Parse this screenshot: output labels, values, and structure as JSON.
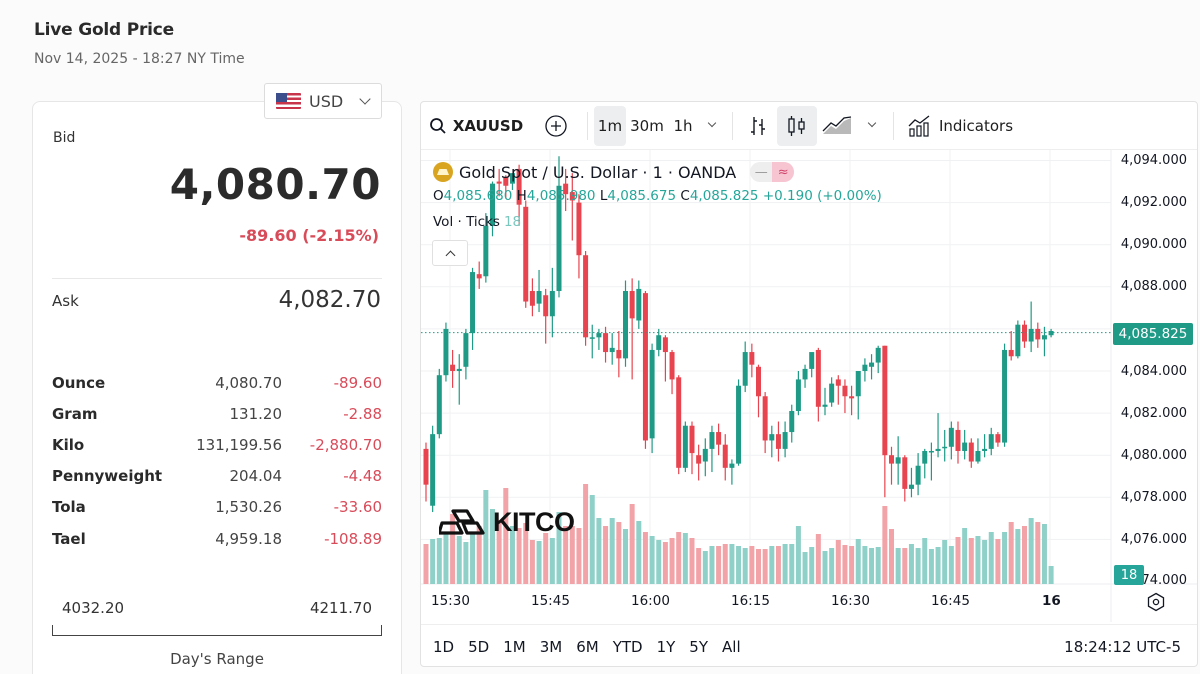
{
  "header": {
    "title": "Live Gold Price",
    "timestamp": "Nov 14, 2025 - 18:27 NY Time"
  },
  "currency_selector": {
    "flag": "us-flag-icon",
    "value": "USD"
  },
  "quote": {
    "bid_label": "Bid",
    "bid": "4,080.70",
    "change": "-89.60 (-2.15%)",
    "ask_label": "Ask",
    "ask": "4,082.70"
  },
  "units": [
    {
      "name": "Ounce",
      "price": "4,080.70",
      "change": "-89.60"
    },
    {
      "name": "Gram",
      "price": "131.20",
      "change": "-2.88"
    },
    {
      "name": "Kilo",
      "price": "131,199.56",
      "change": "-2,880.70"
    },
    {
      "name": "Pennyweight",
      "price": "204.04",
      "change": "-4.48"
    },
    {
      "name": "Tola",
      "price": "1,530.26",
      "change": "-33.60"
    },
    {
      "name": "Tael",
      "price": "4,959.18",
      "change": "-108.89"
    }
  ],
  "day_range": {
    "low": "4032.20",
    "high": "4211.70",
    "label": "Day's Range"
  },
  "chart": {
    "toolbar": {
      "symbol": "XAUUSD",
      "intervals": [
        "1m",
        "30m",
        "1h"
      ],
      "active_interval": "1m",
      "indicators_label": "Indicators"
    },
    "legend": {
      "title": "Gold Spot / U.S. Dollar · 1 · OANDA",
      "o_label": "O",
      "o": "4,085.680",
      "h_label": "H",
      "h": "4,085.980",
      "l_label": "L",
      "l": "4,085.675",
      "c_label": "C",
      "c": "4,085.825",
      "change": "+0.190 (+0.00%)",
      "vol_label": "Vol · Ticks",
      "vol_value": "18"
    },
    "price_axis": [
      "4,094.000",
      "4,092.000",
      "4,090.000",
      "4,088.000",
      "4,084.000",
      "4,082.000",
      "4,080.000",
      "4,078.000",
      "4,076.000",
      "74.000"
    ],
    "last_price_tag": "4,085.825",
    "volume_tag": "18",
    "time_axis": [
      "15:30",
      "15:45",
      "16:00",
      "16:15",
      "16:30",
      "16:45",
      "16"
    ],
    "ranges": [
      "1D",
      "5D",
      "1M",
      "3M",
      "6M",
      "YTD",
      "1Y",
      "5Y",
      "All"
    ],
    "clock": "18:24:12 UTC-5",
    "watermark": "KITCO",
    "colors": {
      "up": "#1e9a86",
      "down": "#e8444f",
      "vol_up": "#8fd0c8",
      "vol_down": "#f2a3a8",
      "last_price": "#1e9a86"
    }
  },
  "chart_data": {
    "type": "candlestick",
    "title": "Gold Spot / U.S. Dollar · 1 · OANDA",
    "interval": "1m",
    "ylim": [
      4074,
      4094.5
    ],
    "y_ticks": [
      4076,
      4078,
      4080,
      4082,
      4084,
      4086,
      4088,
      4090,
      4092,
      4094
    ],
    "x_ticks": [
      "15:30",
      "15:45",
      "16:00",
      "16:15",
      "16:30",
      "16:45",
      "16"
    ],
    "candles": [
      [
        4080.3,
        4078.6,
        4080.6,
        4077.8,
        40
      ],
      [
        4077.6,
        4081.0,
        4081.4,
        4077.3,
        45
      ],
      [
        4081.0,
        4083.8,
        4084.1,
        4080.8,
        46
      ],
      [
        4083.8,
        4086.0,
        4086.3,
        4083.5,
        52
      ],
      [
        4084.3,
        4084.0,
        4085.0,
        4083.2,
        70
      ],
      [
        4084.0,
        4084.1,
        4084.8,
        4082.4,
        48
      ],
      [
        4084.2,
        4085.8,
        4086.0,
        4083.6,
        42
      ],
      [
        4085.8,
        4088.7,
        4088.9,
        4085.0,
        52
      ],
      [
        4088.6,
        4088.4,
        4089.2,
        4087.9,
        58
      ],
      [
        4088.5,
        4090.9,
        4091.5,
        4088.2,
        94
      ],
      [
        4090.9,
        4092.9,
        4093.0,
        4090.4,
        75
      ],
      [
        4093.0,
        4092.9,
        4093.6,
        4092.3,
        64
      ],
      [
        4093.2,
        4092.8,
        4093.3,
        4092.2,
        96
      ],
      [
        4092.9,
        4093.4,
        4093.4,
        4092.6,
        58
      ],
      [
        4093.6,
        4091.9,
        4093.8,
        4090.9,
        56
      ],
      [
        4091.8,
        4087.3,
        4092.1,
        4087.0,
        61
      ],
      [
        4087.8,
        4087.1,
        4088.4,
        4086.6,
        44
      ],
      [
        4087.2,
        4087.8,
        4088.8,
        4086.8,
        43
      ],
      [
        4087.6,
        4086.6,
        4087.9,
        4085.3,
        51
      ],
      [
        4086.6,
        4087.8,
        4088.9,
        4085.6,
        46
      ],
      [
        4087.8,
        4092.8,
        4094.2,
        4087.5,
        72
      ],
      [
        4092.9,
        4092.4,
        4093.6,
        4091.6,
        58
      ],
      [
        4092.5,
        4092.1,
        4093.4,
        4090.2,
        58
      ],
      [
        4092.0,
        4089.5,
        4092.4,
        4088.4,
        56
      ],
      [
        4089.5,
        4085.6,
        4089.7,
        4085.2,
        100
      ],
      [
        4085.6,
        4085.6,
        4086.2,
        4084.6,
        89
      ],
      [
        4085.6,
        4085.8,
        4086.0,
        4085.0,
        66
      ],
      [
        4085.8,
        4084.9,
        4086.1,
        4084.4,
        58
      ],
      [
        4084.9,
        4085.1,
        4085.8,
        4084.3,
        66
      ],
      [
        4085.0,
        4084.6,
        4085.9,
        4083.7,
        62
      ],
      [
        4084.6,
        4087.8,
        4088.3,
        4084.2,
        55
      ],
      [
        4087.8,
        4086.5,
        4088.4,
        4083.6,
        80
      ],
      [
        4086.4,
        4087.9,
        4088.3,
        4086.0,
        63
      ],
      [
        4087.7,
        4080.7,
        4087.8,
        4080.3,
        52
      ],
      [
        4080.8,
        4085.0,
        4085.3,
        4080.1,
        48
      ],
      [
        4085.0,
        4085.7,
        4086.0,
        4084.7,
        44
      ],
      [
        4085.6,
        4084.9,
        4085.7,
        4083.5,
        42
      ],
      [
        4084.9,
        4083.6,
        4085.0,
        4082.9,
        46
      ],
      [
        4083.7,
        4079.4,
        4083.8,
        4079.1,
        52
      ],
      [
        4079.4,
        4081.4,
        4081.6,
        4079.2,
        51
      ],
      [
        4081.4,
        4080.1,
        4081.6,
        4079.1,
        46
      ],
      [
        4080.0,
        4079.6,
        4080.5,
        4078.8,
        36
      ],
      [
        4079.7,
        4080.3,
        4080.8,
        4079.0,
        33
      ],
      [
        4080.3,
        4081.1,
        4081.4,
        4079.2,
        38
      ],
      [
        4081.1,
        4080.5,
        4081.5,
        4080.0,
        38
      ],
      [
        4080.5,
        4079.4,
        4081.0,
        4078.8,
        40
      ],
      [
        4079.4,
        4079.6,
        4079.8,
        4078.6,
        40
      ],
      [
        4079.6,
        4083.3,
        4083.6,
        4079.5,
        38
      ],
      [
        4083.3,
        4084.9,
        4085.4,
        4083.0,
        36
      ],
      [
        4084.9,
        4084.3,
        4085.3,
        4083.7,
        38
      ],
      [
        4084.2,
        4082.8,
        4084.3,
        4081.8,
        35
      ],
      [
        4082.8,
        4080.7,
        4083.0,
        4080.1,
        35
      ],
      [
        4080.7,
        4081.0,
        4081.4,
        4079.9,
        38
      ],
      [
        4081.0,
        4080.3,
        4081.6,
        4079.7,
        38
      ],
      [
        4080.3,
        4081.1,
        4081.6,
        4079.9,
        40
      ],
      [
        4081.1,
        4082.1,
        4082.4,
        4080.6,
        40
      ],
      [
        4082.1,
        4083.6,
        4084.0,
        4081.9,
        58
      ],
      [
        4083.6,
        4084.1,
        4084.3,
        4083.2,
        32
      ],
      [
        4084.1,
        4084.9,
        4084.8,
        4083.7,
        37
      ],
      [
        4085.0,
        4082.3,
        4085.1,
        4081.6,
        50
      ],
      [
        4082.3,
        4082.4,
        4083.2,
        4081.9,
        33
      ],
      [
        4082.5,
        4083.4,
        4083.7,
        4082.3,
        36
      ],
      [
        4083.6,
        4083.3,
        4083.8,
        4082.4,
        44
      ],
      [
        4083.3,
        4082.8,
        4083.6,
        4082.0,
        39
      ],
      [
        4082.8,
        4082.7,
        4083.3,
        4081.9,
        38
      ],
      [
        4082.8,
        4084.0,
        4084.0,
        4081.7,
        45
      ],
      [
        4084.0,
        4084.3,
        4084.6,
        4083.5,
        38
      ],
      [
        4084.2,
        4084.4,
        4084.8,
        4083.6,
        36
      ],
      [
        4084.4,
        4085.1,
        4085.2,
        4083.9,
        37
      ],
      [
        4085.2,
        4080.0,
        4085.2,
        4078.0,
        78
      ],
      [
        4080.0,
        4079.6,
        4080.4,
        4078.6,
        55
      ],
      [
        4079.6,
        4079.9,
        4080.9,
        4078.6,
        36
      ],
      [
        4079.9,
        4078.4,
        4080.0,
        4077.8,
        36
      ],
      [
        4078.4,
        4078.6,
        4079.4,
        4078.0,
        40
      ],
      [
        4078.6,
        4079.5,
        4080.1,
        4078.1,
        36
      ],
      [
        4079.6,
        4080.2,
        4080.3,
        4078.9,
        46
      ],
      [
        4080.2,
        4080.2,
        4080.6,
        4078.8,
        35
      ],
      [
        4080.2,
        4080.3,
        4082.0,
        4079.9,
        37
      ],
      [
        4080.4,
        4080.4,
        4081.2,
        4079.7,
        44
      ],
      [
        4080.4,
        4081.3,
        4081.6,
        4079.8,
        38
      ],
      [
        4081.2,
        4080.2,
        4081.6,
        4079.6,
        47
      ],
      [
        4080.2,
        4080.6,
        4081.2,
        4079.8,
        56
      ],
      [
        4080.6,
        4079.7,
        4080.8,
        4079.4,
        46
      ],
      [
        4079.7,
        4080.2,
        4080.8,
        4079.6,
        48
      ],
      [
        4080.2,
        4080.3,
        4081.0,
        4079.9,
        44
      ],
      [
        4080.3,
        4081.0,
        4081.3,
        4080.0,
        52
      ],
      [
        4081.0,
        4080.6,
        4081.1,
        4080.4,
        45
      ],
      [
        4080.6,
        4085.0,
        4085.3,
        4080.4,
        52
      ],
      [
        4085.0,
        4084.7,
        4085.9,
        4084.5,
        62
      ],
      [
        4084.7,
        4086.2,
        4086.4,
        4084.6,
        55
      ],
      [
        4086.2,
        4085.4,
        4086.4,
        4085.1,
        58
      ],
      [
        4085.4,
        4086.0,
        4087.3,
        4084.9,
        66
      ],
      [
        4086.0,
        4085.5,
        4086.3,
        4085.1,
        62
      ],
      [
        4085.5,
        4085.7,
        4086.1,
        4084.7,
        60
      ],
      [
        4085.7,
        4085.9,
        4086.0,
        4085.6,
        18
      ]
    ],
    "candle_format": [
      "open",
      "close",
      "high",
      "low",
      "volume"
    ],
    "last_price": 4085.825
  }
}
